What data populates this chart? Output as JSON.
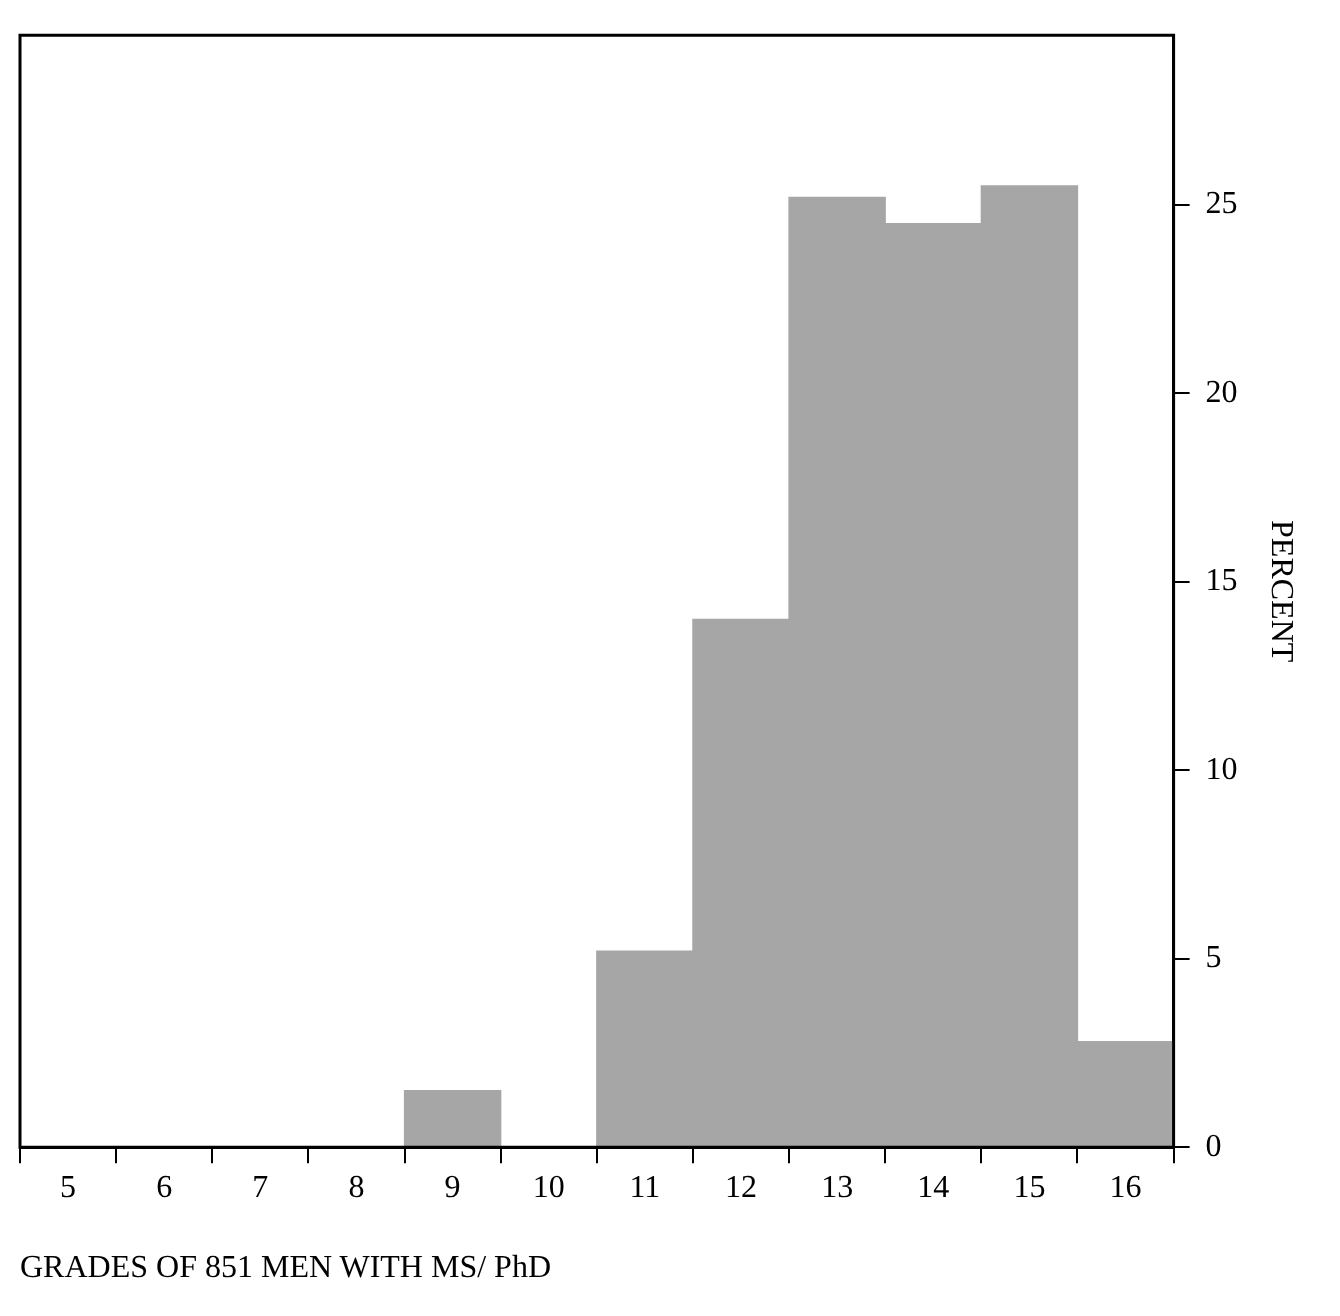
{
  "chart_data": {
    "type": "histogram",
    "xlabel": "GRADES OF 851 MEN WITH MS/ PhD",
    "ylabel": "PERCENT",
    "bins": [
      4.5,
      5.5,
      6.5,
      7.5,
      8.5,
      9.5,
      10.5,
      11.5,
      12.5,
      13.5,
      14.5,
      15.5,
      16.5
    ],
    "values": [
      0,
      0,
      0,
      0,
      1.5,
      0,
      5.2,
      14,
      25.2,
      24.5,
      25.5,
      2.8
    ],
    "color": "#a6a6a6",
    "xlim": [
      4.5,
      16.5
    ],
    "xticks": [
      5,
      6,
      7,
      8,
      9,
      10,
      11,
      12,
      13,
      14,
      15,
      16
    ],
    "ylim": [
      0,
      29.5
    ],
    "yticks": [
      0,
      5,
      10,
      15,
      20,
      25
    ],
    "grid": false,
    "legend": false
  }
}
